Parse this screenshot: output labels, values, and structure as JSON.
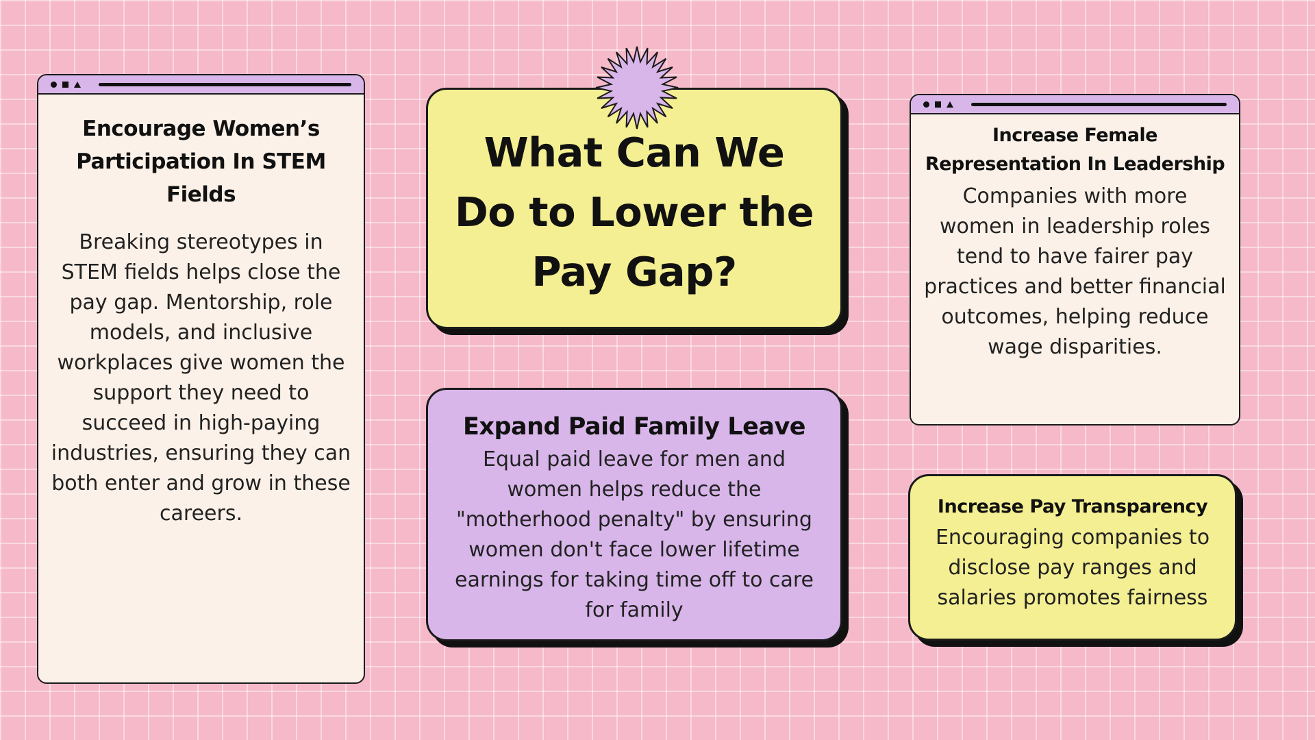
{
  "main_card": {
    "title": "What Can We Do to Lower the Pay Gap?"
  },
  "cards": {
    "stem": {
      "heading": "Encourage Women’s Participation In STEM Fields",
      "body": "Breaking stereotypes in STEM fields helps close the pay gap. Mentorship, role models, and inclusive workplaces give women the support they need to succeed in high-paying industries, ensuring they can both enter and grow in these careers."
    },
    "family_leave": {
      "heading": "Expand Paid Family Leave",
      "body": "Equal paid leave for men and women helps reduce the \"motherhood penalty\" by ensuring women don't face lower lifetime earnings for taking time off to care for family"
    },
    "leadership": {
      "heading": "Increase Female Representation In Leadership",
      "body": "Companies with more women in leadership roles tend to have fairer pay practices and better financial outcomes, helping reduce wage disparities."
    },
    "transparency": {
      "heading": "Increase Pay Transparency",
      "body": "Encouraging companies to disclose pay ranges and salaries promotes fairness"
    }
  },
  "colors": {
    "background": "#f5b9c9",
    "yellow_card": "#f4ef92",
    "lavender_card": "#d8b6ea",
    "cream_window": "#fbf1e8",
    "outline": "#1a1a1a"
  },
  "icons": [
    "window-dot-icon",
    "window-square-icon",
    "window-triangle-icon",
    "starburst-icon"
  ]
}
